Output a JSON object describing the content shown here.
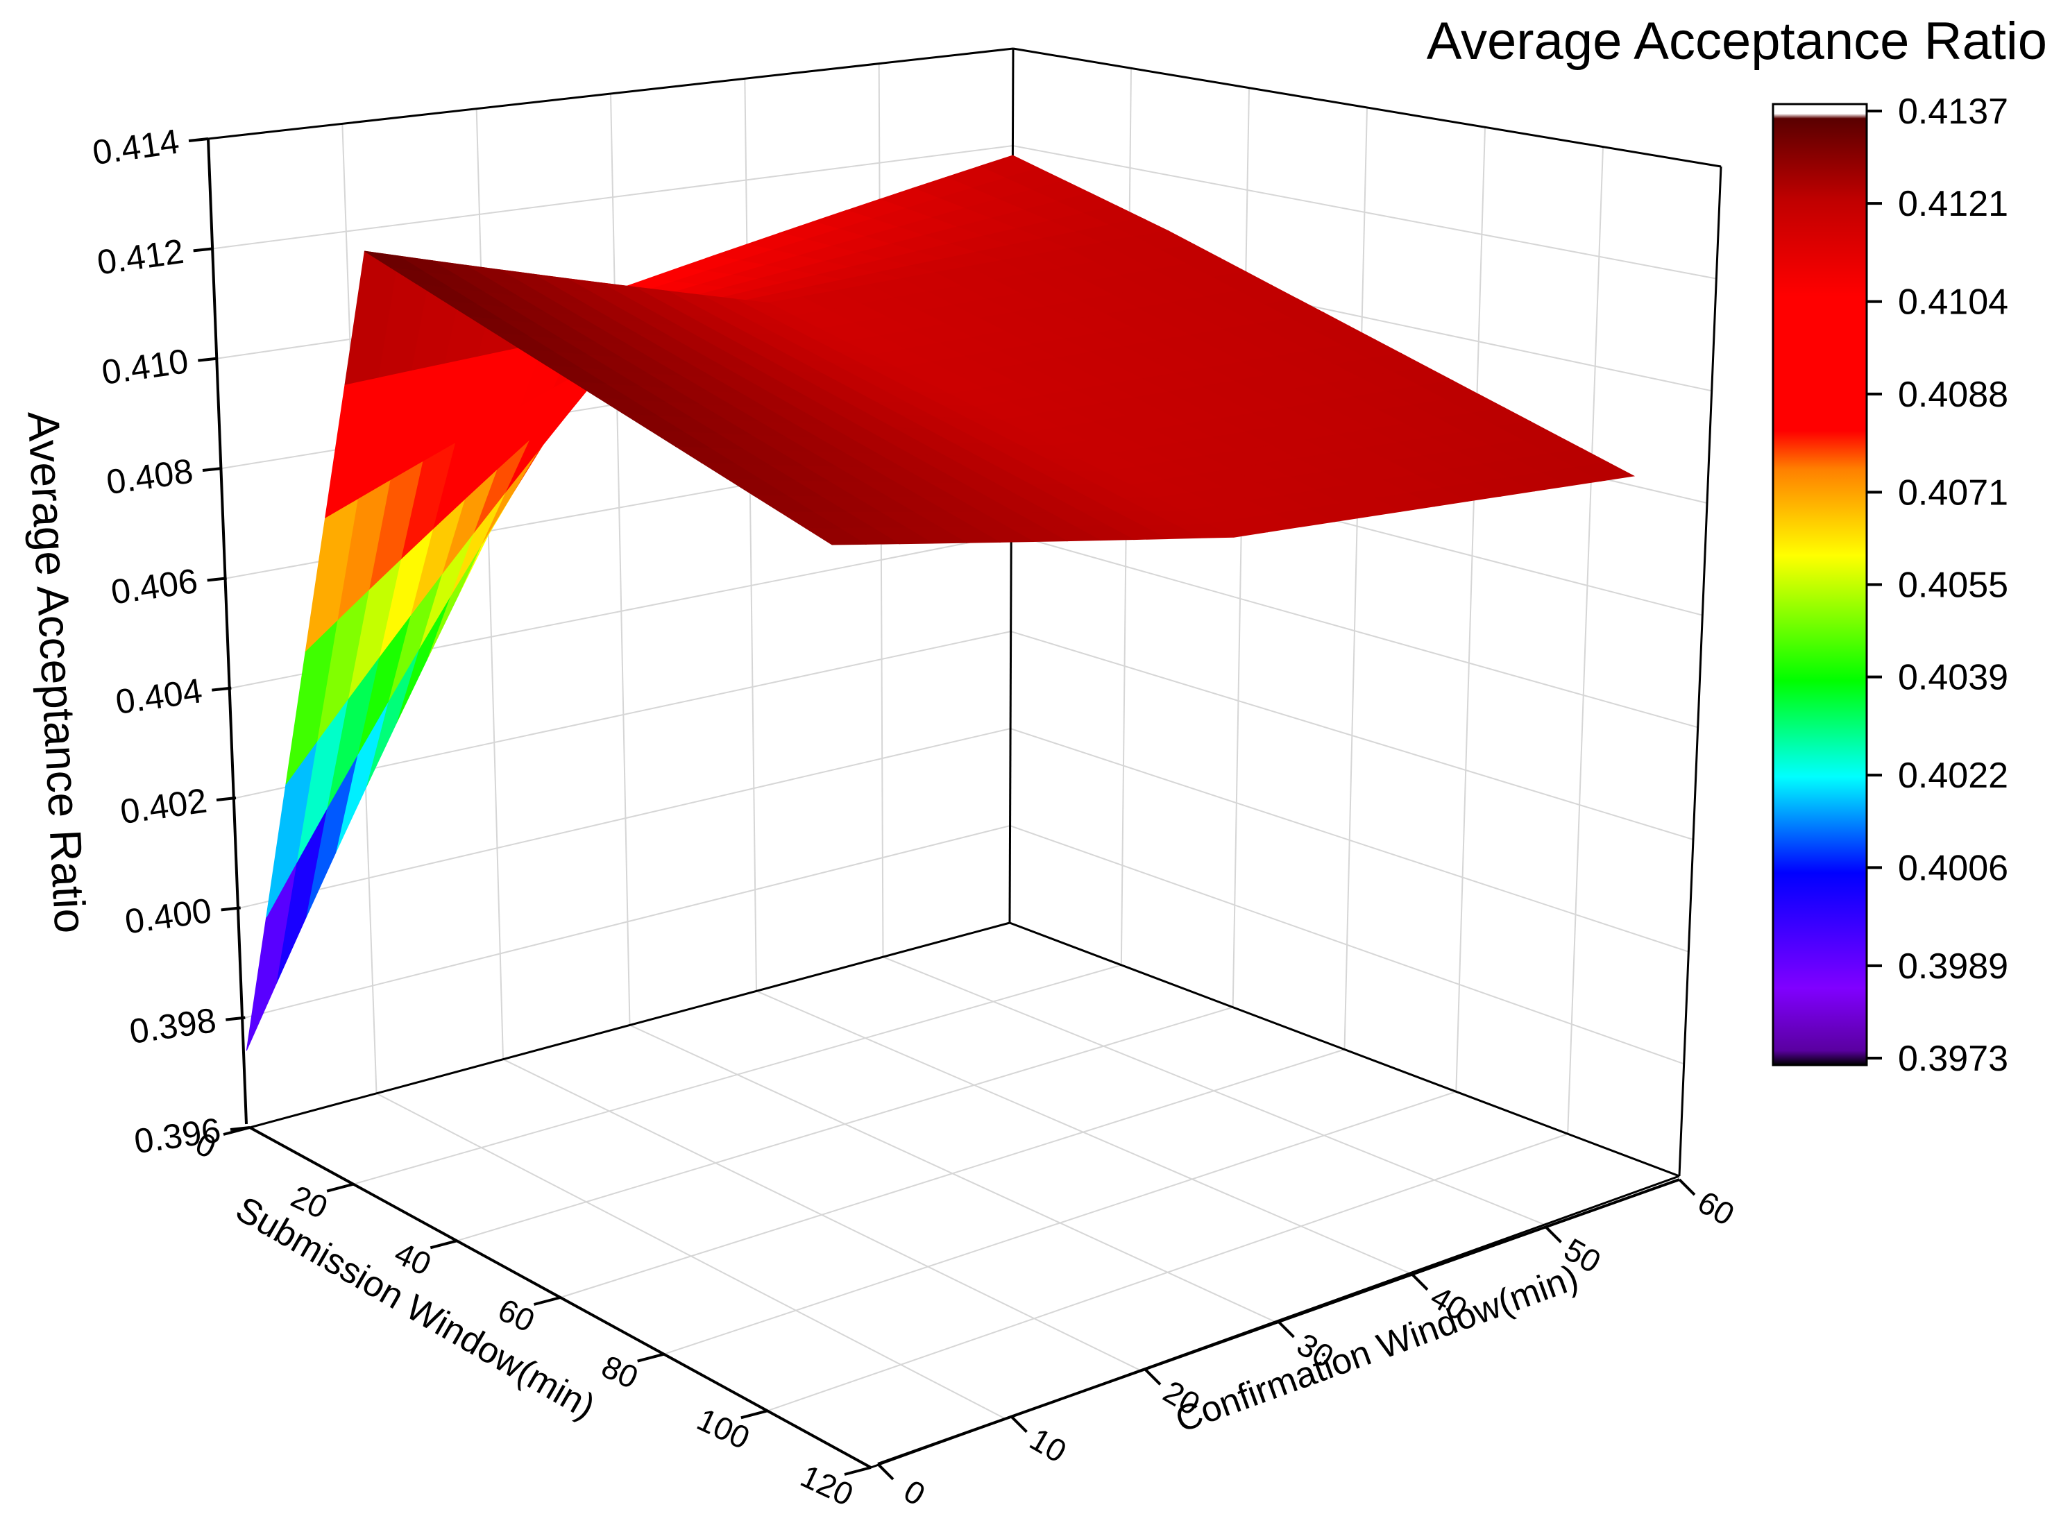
{
  "chart_data": {
    "type": "surface",
    "title": "Average Acceptance Ratio",
    "zlabel": "Average Acceptance Ratio",
    "xlabel": "Submission Window(min)",
    "ylabel": "Confirmation Window(min)",
    "zlim": [
      0.396,
      0.414
    ],
    "z_ticks": [
      "0.396",
      "0.398",
      "0.400",
      "0.402",
      "0.404",
      "0.406",
      "0.408",
      "0.410",
      "0.412",
      "0.414"
    ],
    "x_ticks": [
      "0",
      "20",
      "40",
      "60",
      "80",
      "100",
      "120"
    ],
    "y_ticks": [
      "0",
      "10",
      "20",
      "30",
      "40",
      "50",
      "60"
    ],
    "grid": true,
    "surface": {
      "submission_window": [
        0,
        30,
        120
      ],
      "confirmation_window": [
        0,
        30,
        60
      ],
      "z": [
        [
          0.3974,
          0.4135,
          0.4128
        ],
        [
          0.4102,
          0.4116,
          0.412
        ],
        [
          0.4118,
          0.412,
          0.4122
        ]
      ]
    },
    "colorbar": {
      "title": "Average Acceptance Ratio",
      "min": 0.3973,
      "max": 0.4137,
      "ticks": [
        "0.4137",
        "0.4121",
        "0.4104",
        "0.4088",
        "0.4071",
        "0.4055",
        "0.4039",
        "0.4022",
        "0.4006",
        "0.3989",
        "0.3973"
      ],
      "colors": [
        "#000000",
        "#5a00a0",
        "#8000ff",
        "#0000ff",
        "#00ffff",
        "#00ff00",
        "#ffff00",
        "#ff8000",
        "#ff0000",
        "#ff0000",
        "#c00000",
        "#5a0000",
        "#ffffff"
      ]
    }
  }
}
